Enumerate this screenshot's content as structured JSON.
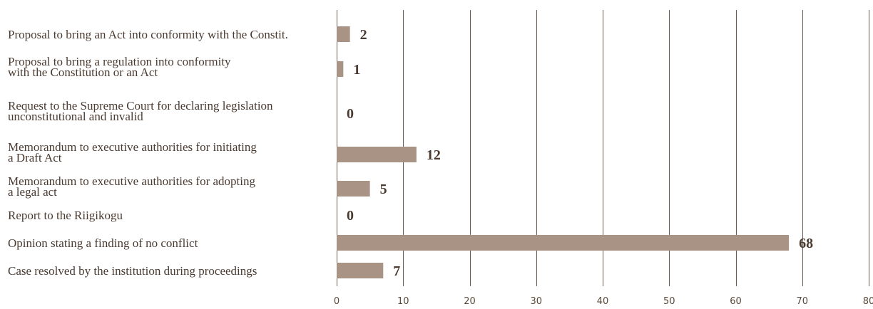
{
  "chart_data": {
    "type": "bar",
    "orientation": "horizontal",
    "title": "",
    "xlabel": "",
    "ylabel": "",
    "categories": [
      [
        "Proposal to bring an Act into conformity with the Constit."
      ],
      [
        "Proposal to bring a regulation into conformity",
        "with the Constitution or an Act"
      ],
      [
        "Request to the Supreme Court for declaring legislation",
        "unconstitutional and invalid"
      ],
      [
        "Memorandum to executive authorities for initiating",
        "a Draft Act"
      ],
      [
        "Memorandum to executive authorities for adopting",
        "a legal act"
      ],
      [
        "Report to the Riigikogu"
      ],
      [
        "Opinion stating a finding of no conflict"
      ],
      [
        "Case resolved by the institution during proceedings"
      ]
    ],
    "values": [
      2,
      1,
      0,
      12,
      5,
      0,
      68,
      7
    ],
    "value_labels": [
      "2",
      "1",
      "0",
      "12",
      "5",
      "0",
      "68",
      "7"
    ],
    "xlim": [
      0,
      80
    ],
    "ticks": [
      0,
      10,
      20,
      30,
      40,
      50,
      60,
      70,
      80
    ],
    "tick_labels": [
      "0",
      "10",
      "20",
      "30",
      "40",
      "50",
      "60",
      "70",
      "80"
    ],
    "grid": true,
    "legend": "none",
    "colors": {
      "bar": "#a89384",
      "text": "#4a3a30",
      "grid": "#6b5a4d"
    }
  }
}
